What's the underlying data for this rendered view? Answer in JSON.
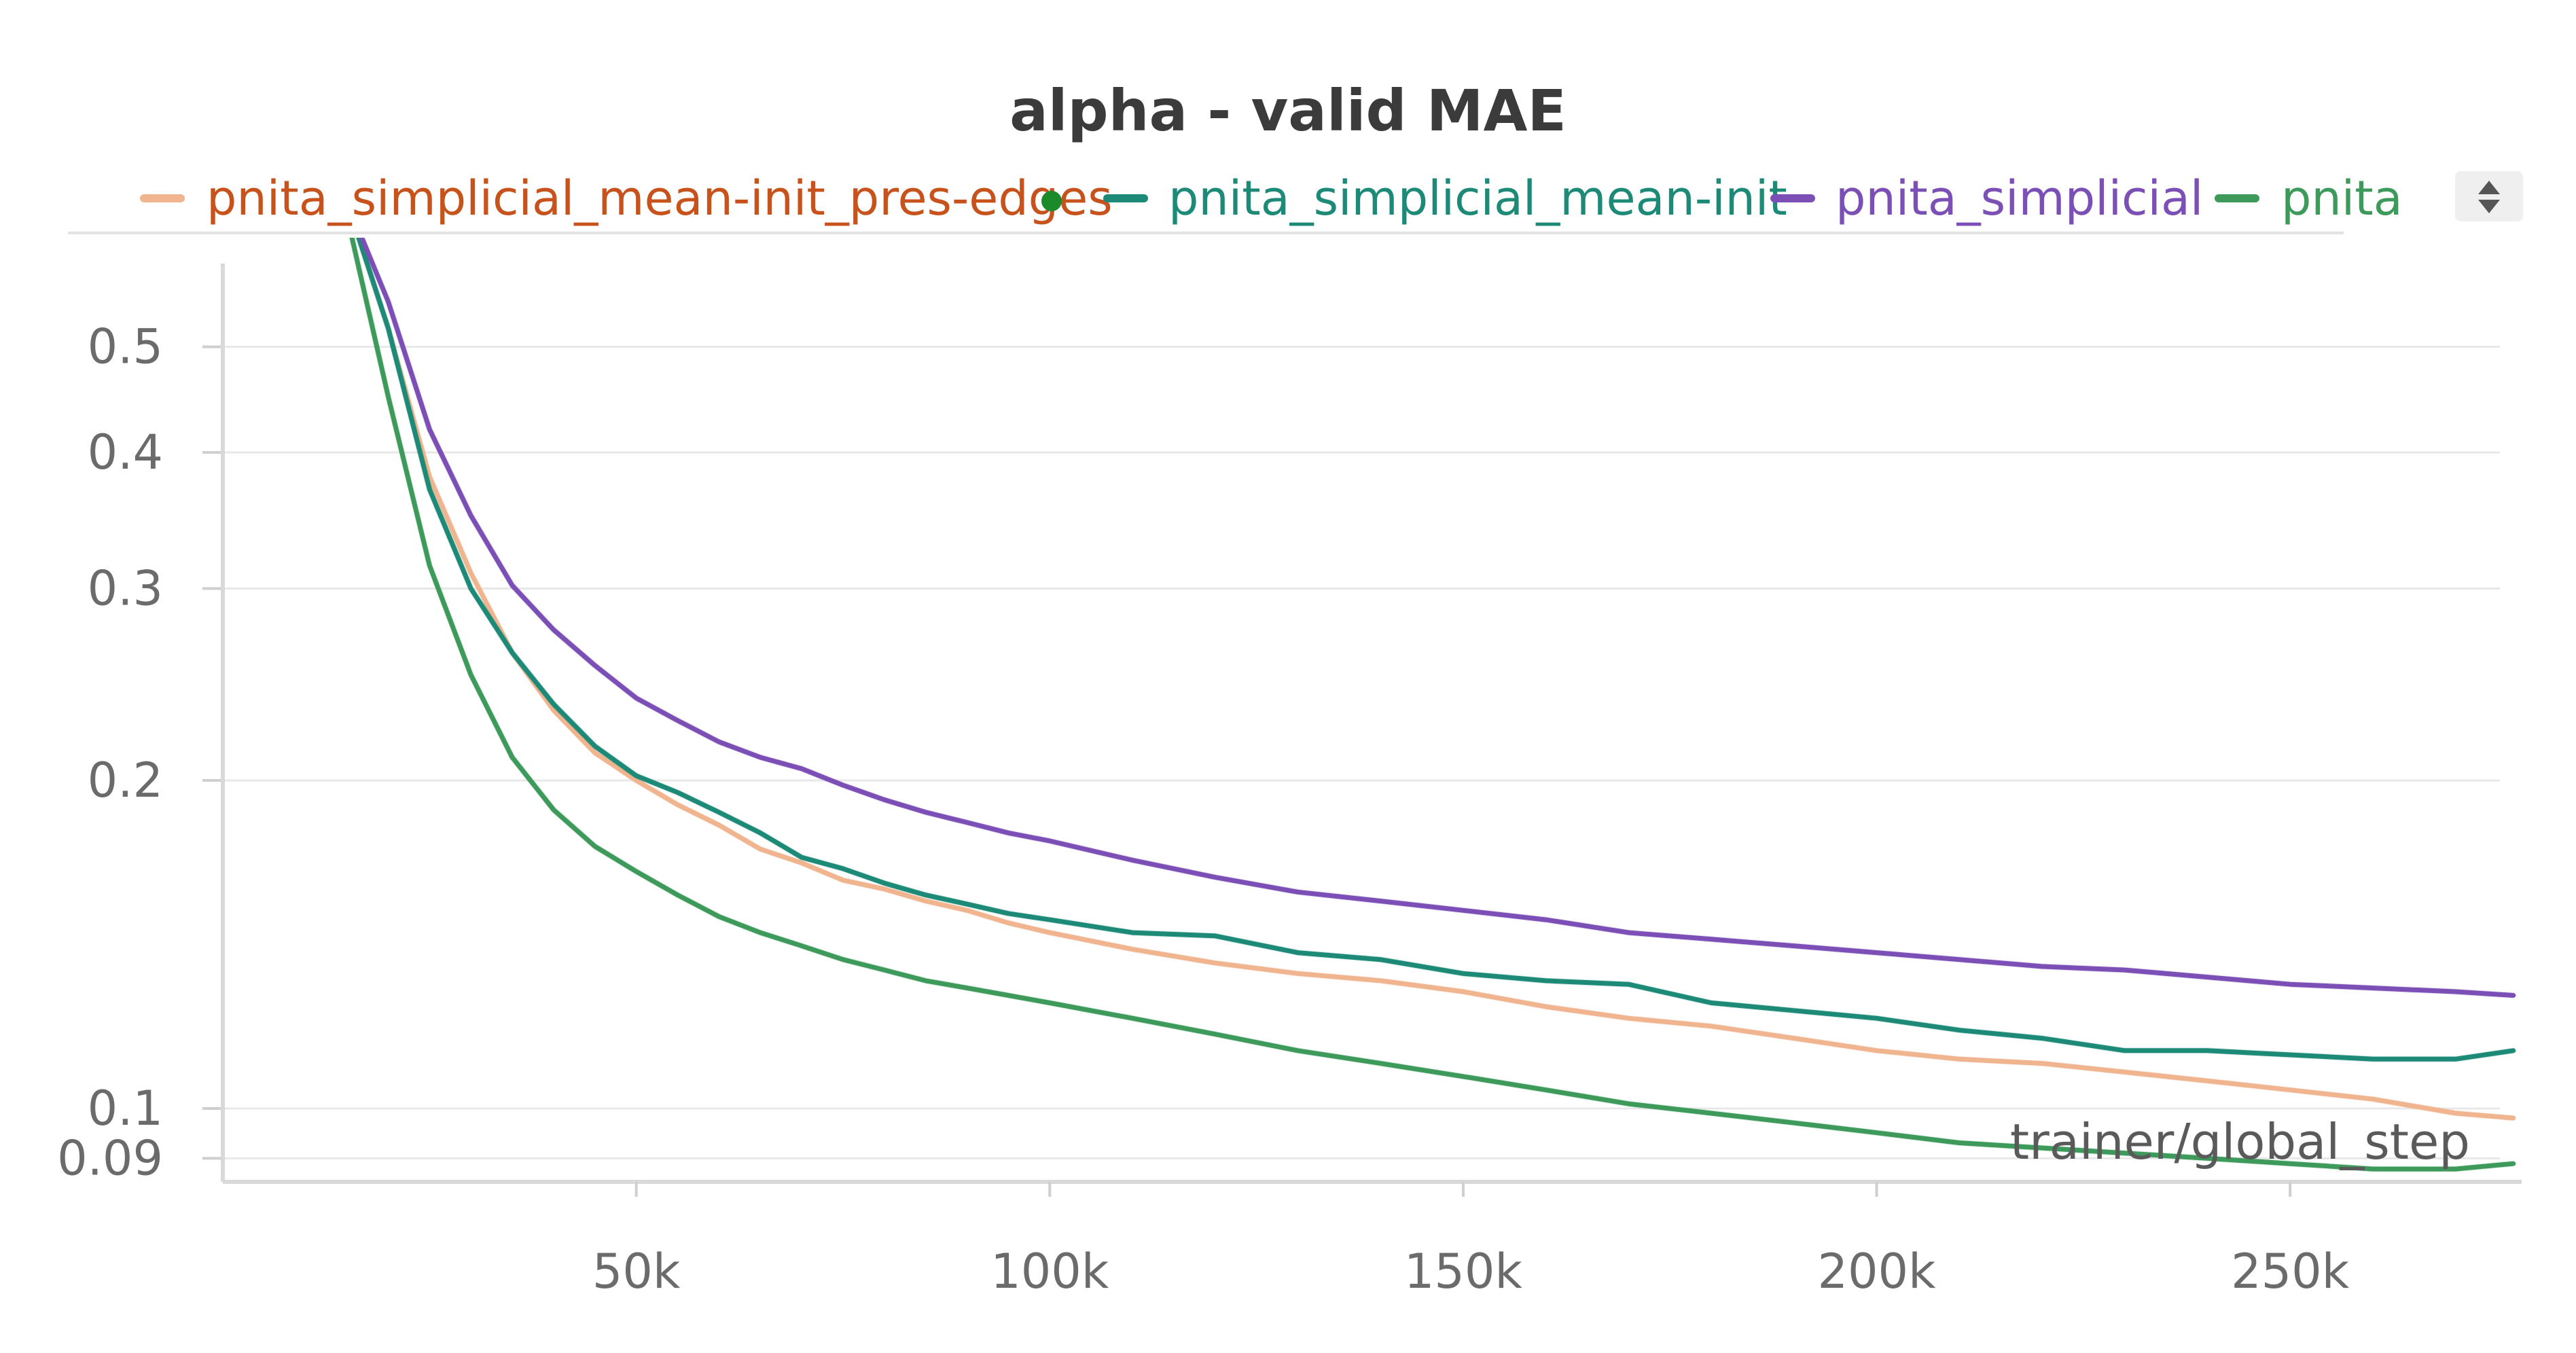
{
  "chart_data": {
    "type": "line",
    "title": "alpha - valid MAE",
    "xlabel": "trainer/global_step",
    "ylabel": "",
    "y_scale": "log",
    "xlim": [
      0,
      278000
    ],
    "ylim": [
      0.087,
      0.62
    ],
    "x_ticks": [
      50000,
      100000,
      150000,
      200000,
      250000
    ],
    "x_tick_labels": [
      "50k",
      "100k",
      "150k",
      "200k",
      "250k"
    ],
    "y_ticks": [
      0.5,
      0.4,
      0.3,
      0.2,
      0.1,
      0.09
    ],
    "y_tick_labels": [
      "0.5",
      "0.4",
      "0.3",
      "0.2",
      "0.1",
      "0.09"
    ],
    "grid": true,
    "legend_placement": "top",
    "series": [
      {
        "name": "pnita_simplicial_mean-init_pres-edges",
        "color": "#f0b48e",
        "label_color": "#c8521c",
        "x": [
          15000,
          20000,
          25000,
          30000,
          35000,
          40000,
          45000,
          50000,
          55000,
          60000,
          65000,
          70000,
          75000,
          80000,
          85000,
          90000,
          95000,
          100000,
          110000,
          120000,
          130000,
          140000,
          150000,
          160000,
          170000,
          180000,
          190000,
          200000,
          210000,
          220000,
          230000,
          240000,
          250000,
          260000,
          270000,
          277000
        ],
        "y": [
          0.68,
          0.52,
          0.38,
          0.31,
          0.262,
          0.232,
          0.212,
          0.2,
          0.19,
          0.182,
          0.173,
          0.168,
          0.162,
          0.159,
          0.155,
          0.152,
          0.148,
          0.145,
          0.14,
          0.136,
          0.133,
          0.131,
          0.128,
          0.124,
          0.121,
          0.119,
          0.116,
          0.113,
          0.111,
          0.11,
          0.108,
          0.106,
          0.104,
          0.102,
          0.099,
          0.098
        ]
      },
      {
        "name": "pnita_simplicial_mean-init",
        "color": "#1d8a78",
        "label_color": "#1d8a78",
        "x": [
          15000,
          20000,
          25000,
          30000,
          35000,
          40000,
          45000,
          50000,
          55000,
          60000,
          65000,
          70000,
          75000,
          80000,
          85000,
          90000,
          95000,
          100000,
          110000,
          120000,
          130000,
          140000,
          150000,
          160000,
          170000,
          180000,
          190000,
          200000,
          210000,
          220000,
          230000,
          240000,
          250000,
          260000,
          270000,
          277000
        ],
        "y": [
          0.68,
          0.52,
          0.37,
          0.3,
          0.262,
          0.235,
          0.215,
          0.202,
          0.195,
          0.187,
          0.179,
          0.17,
          0.166,
          0.161,
          0.157,
          0.154,
          0.151,
          0.149,
          0.145,
          0.144,
          0.139,
          0.137,
          0.133,
          0.131,
          0.13,
          0.125,
          0.123,
          0.121,
          0.118,
          0.116,
          0.113,
          0.113,
          0.112,
          0.111,
          0.111,
          0.113
        ]
      },
      {
        "name": "pnita_simplicial",
        "color": "#7b4fb5",
        "label_color": "#7b4fb5",
        "x": [
          15000,
          20000,
          25000,
          30000,
          35000,
          40000,
          45000,
          50000,
          55000,
          60000,
          65000,
          70000,
          75000,
          80000,
          85000,
          90000,
          95000,
          100000,
          110000,
          120000,
          130000,
          140000,
          150000,
          160000,
          170000,
          180000,
          190000,
          200000,
          210000,
          220000,
          230000,
          240000,
          250000,
          260000,
          270000,
          277000
        ],
        "y": [
          0.68,
          0.55,
          0.42,
          0.35,
          0.302,
          0.275,
          0.255,
          0.238,
          0.227,
          0.217,
          0.21,
          0.205,
          0.198,
          0.192,
          0.187,
          0.183,
          0.179,
          0.176,
          0.169,
          0.163,
          0.158,
          0.155,
          0.152,
          0.149,
          0.145,
          0.143,
          0.141,
          0.139,
          0.137,
          0.135,
          0.134,
          0.132,
          0.13,
          0.129,
          0.128,
          0.127
        ]
      },
      {
        "name": "pnita",
        "color": "#3d9a5b",
        "label_color": "#3d9a5b",
        "x": [
          15000,
          20000,
          25000,
          30000,
          35000,
          40000,
          45000,
          50000,
          55000,
          60000,
          65000,
          70000,
          75000,
          80000,
          85000,
          90000,
          95000,
          100000,
          110000,
          120000,
          130000,
          140000,
          150000,
          160000,
          170000,
          180000,
          190000,
          200000,
          210000,
          220000,
          230000,
          240000,
          250000,
          260000,
          270000,
          277000
        ],
        "y": [
          0.66,
          0.45,
          0.315,
          0.25,
          0.21,
          0.188,
          0.174,
          0.165,
          0.157,
          0.15,
          0.145,
          0.141,
          0.137,
          0.134,
          0.131,
          0.129,
          0.127,
          0.125,
          0.121,
          0.117,
          0.113,
          0.11,
          0.107,
          0.104,
          0.101,
          0.099,
          0.097,
          0.095,
          0.093,
          0.092,
          0.091,
          0.09,
          0.089,
          0.088,
          0.088,
          0.089
        ]
      }
    ]
  },
  "legend": {
    "scroll_icon": "up-down-arrows-icon",
    "active_dot_color": "#1a8a2a"
  }
}
